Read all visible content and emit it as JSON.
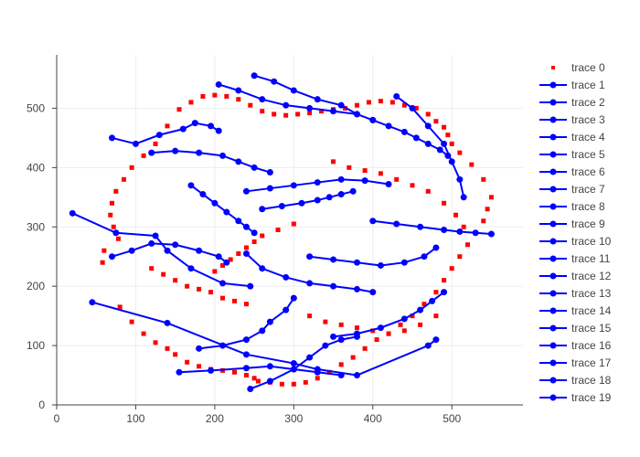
{
  "chart_data": {
    "type": "scatter",
    "title": "",
    "xlabel": "",
    "ylabel": "",
    "xlim": [
      0,
      590
    ],
    "ylim": [
      0,
      590
    ],
    "x_ticks": [
      0,
      100,
      200,
      300,
      400,
      500
    ],
    "y_ticks": [
      0,
      100,
      200,
      300,
      400,
      500
    ],
    "grid": true,
    "legend_position": "right",
    "series": [
      {
        "name": "trace 0",
        "mode": "markers",
        "color": "#ff0000",
        "x": [
          80,
          95,
          110,
          125,
          140,
          150,
          165,
          180,
          195,
          210,
          225,
          240,
          250,
          255,
          270,
          285,
          300,
          315,
          330,
          345,
          360,
          375,
          390,
          405,
          420,
          435,
          450,
          465,
          480,
          490,
          500,
          510,
          520,
          530,
          540,
          545,
          550,
          540,
          525,
          510,
          500,
          495,
          490,
          480,
          470,
          455,
          440,
          425,
          410,
          395,
          380,
          365,
          350,
          335,
          320,
          305,
          290,
          275,
          260,
          245,
          230,
          215,
          200,
          185,
          170,
          155,
          140,
          125,
          110,
          95,
          85,
          75,
          70,
          68,
          72,
          78,
          60,
          58,
          120,
          135,
          150,
          165,
          180,
          195,
          210,
          225,
          240,
          320,
          340,
          360,
          380,
          400,
          420,
          440,
          460,
          480,
          300,
          280,
          260,
          250,
          240,
          230,
          220,
          210,
          200,
          350,
          370,
          390,
          410,
          430,
          450,
          470,
          490,
          505,
          515
        ],
        "y": [
          165,
          140,
          120,
          105,
          95,
          85,
          72,
          65,
          60,
          58,
          55,
          50,
          45,
          40,
          38,
          35,
          35,
          38,
          45,
          55,
          68,
          80,
          95,
          110,
          120,
          135,
          150,
          170,
          190,
          210,
          230,
          250,
          270,
          290,
          310,
          330,
          350,
          380,
          405,
          425,
          440,
          455,
          468,
          478,
          490,
          500,
          505,
          510,
          512,
          510,
          505,
          500,
          498,
          495,
          492,
          490,
          488,
          490,
          495,
          505,
          515,
          520,
          522,
          520,
          510,
          498,
          470,
          440,
          420,
          400,
          380,
          360,
          340,
          320,
          300,
          280,
          260,
          240,
          230,
          220,
          210,
          200,
          195,
          190,
          180,
          175,
          170,
          150,
          140,
          135,
          130,
          125,
          120,
          125,
          135,
          150,
          305,
          295,
          285,
          275,
          265,
          255,
          245,
          235,
          225,
          410,
          400,
          395,
          390,
          380,
          370,
          360,
          340,
          320,
          300
        ]
      },
      {
        "name": "trace 1",
        "mode": "lines+markers",
        "color": "#0000ff",
        "x": [
          20,
          75,
          125,
          140,
          170,
          210,
          245
        ],
        "y": [
          323,
          290,
          285,
          260,
          230,
          205,
          200
        ]
      },
      {
        "name": "trace 2",
        "mode": "lines+markers",
        "color": "#0000ff",
        "x": [
          45,
          140,
          240,
          300,
          330,
          380,
          470,
          480
        ],
        "y": [
          173,
          138,
          85,
          70,
          60,
          50,
          100,
          110
        ]
      },
      {
        "name": "trace 3",
        "mode": "lines+markers",
        "color": "#0000ff",
        "x": [
          70,
          95,
          120,
          150,
          180,
          205,
          215
        ],
        "y": [
          250,
          260,
          272,
          270,
          260,
          250,
          240
        ]
      },
      {
        "name": "trace 4",
        "mode": "lines+markers",
        "color": "#0000ff",
        "x": [
          120,
          150,
          180,
          210,
          230,
          250,
          270
        ],
        "y": [
          425,
          428,
          425,
          420,
          410,
          400,
          392
        ]
      },
      {
        "name": "trace 5",
        "mode": "lines+markers",
        "color": "#0000ff",
        "x": [
          70,
          100,
          130,
          160,
          175,
          195,
          205
        ],
        "y": [
          450,
          440,
          455,
          465,
          475,
          470,
          462
        ]
      },
      {
        "name": "trace 6",
        "mode": "lines+markers",
        "color": "#0000ff",
        "x": [
          155,
          195,
          240,
          270,
          300,
          330,
          360
        ],
        "y": [
          55,
          58,
          62,
          65,
          60,
          55,
          50
        ]
      },
      {
        "name": "trace 7",
        "mode": "lines+markers",
        "color": "#0000ff",
        "x": [
          245,
          270,
          300,
          320,
          340,
          360,
          380
        ],
        "y": [
          27,
          40,
          60,
          80,
          100,
          110,
          115
        ]
      },
      {
        "name": "trace 8",
        "mode": "lines+markers",
        "color": "#0000ff",
        "x": [
          180,
          210,
          240,
          260,
          270,
          290,
          300
        ],
        "y": [
          95,
          100,
          110,
          125,
          140,
          160,
          180
        ]
      },
      {
        "name": "trace 9",
        "mode": "lines+markers",
        "color": "#0000ff",
        "x": [
          350,
          380,
          410,
          440,
          460,
          475,
          490
        ],
        "y": [
          115,
          120,
          130,
          145,
          160,
          175,
          190
        ]
      },
      {
        "name": "trace 10",
        "mode": "lines+markers",
        "color": "#0000ff",
        "x": [
          240,
          260,
          290,
          320,
          350,
          380,
          400
        ],
        "y": [
          255,
          230,
          215,
          205,
          200,
          195,
          190
        ]
      },
      {
        "name": "trace 11",
        "mode": "lines+markers",
        "color": "#0000ff",
        "x": [
          320,
          350,
          380,
          410,
          440,
          465,
          480
        ],
        "y": [
          250,
          245,
          240,
          235,
          240,
          250,
          265
        ]
      },
      {
        "name": "trace 12",
        "mode": "lines+markers",
        "color": "#0000ff",
        "x": [
          400,
          430,
          460,
          490,
          510,
          530,
          550
        ],
        "y": [
          310,
          305,
          300,
          295,
          292,
          290,
          288
        ]
      },
      {
        "name": "trace 13",
        "mode": "lines+markers",
        "color": "#0000ff",
        "x": [
          400,
          420,
          440,
          455,
          470,
          485,
          495
        ],
        "y": [
          480,
          470,
          460,
          450,
          440,
          430,
          420
        ]
      },
      {
        "name": "trace 14",
        "mode": "lines+markers",
        "color": "#0000ff",
        "x": [
          205,
          230,
          260,
          290,
          320,
          350,
          380
        ],
        "y": [
          540,
          530,
          515,
          505,
          500,
          495,
          490
        ]
      },
      {
        "name": "trace 15",
        "mode": "lines+markers",
        "color": "#0000ff",
        "x": [
          250,
          275,
          300,
          330,
          360,
          380,
          400
        ],
        "y": [
          555,
          545,
          530,
          515,
          505,
          490,
          480
        ]
      },
      {
        "name": "trace 16",
        "mode": "lines+markers",
        "color": "#0000ff",
        "x": [
          240,
          270,
          300,
          330,
          360,
          390,
          420
        ],
        "y": [
          360,
          365,
          370,
          375,
          380,
          378,
          372
        ]
      },
      {
        "name": "trace 17",
        "mode": "lines+markers",
        "color": "#0000ff",
        "x": [
          260,
          285,
          310,
          330,
          345,
          360,
          375
        ],
        "y": [
          330,
          335,
          340,
          345,
          350,
          355,
          360
        ]
      },
      {
        "name": "trace 18",
        "mode": "lines+markers",
        "color": "#0000ff",
        "x": [
          170,
          185,
          200,
          215,
          230,
          240,
          250
        ],
        "y": [
          370,
          355,
          340,
          325,
          310,
          300,
          290
        ]
      },
      {
        "name": "trace 19",
        "mode": "lines+markers",
        "color": "#0000ff",
        "x": [
          430,
          450,
          470,
          490,
          500,
          510,
          515
        ],
        "y": [
          520,
          500,
          470,
          440,
          410,
          380,
          350
        ]
      }
    ]
  }
}
